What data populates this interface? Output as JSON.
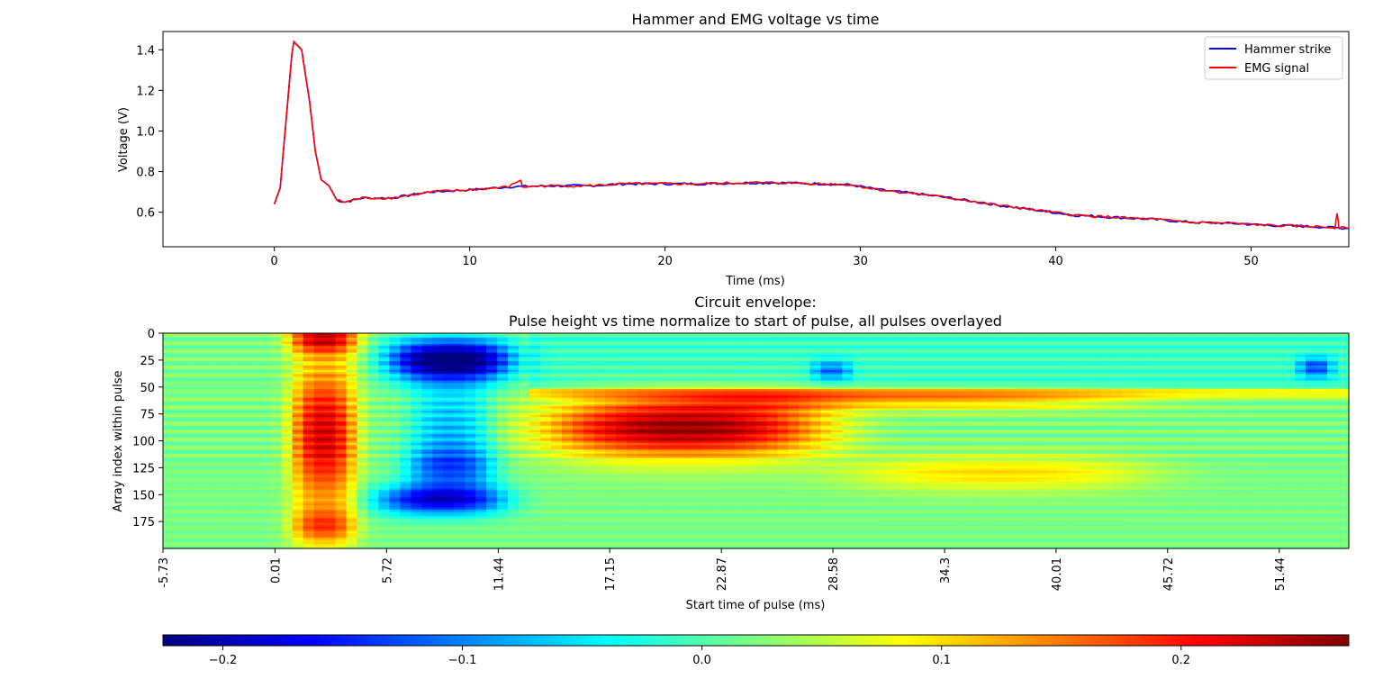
{
  "chart_data": [
    {
      "type": "line",
      "title": "Hammer and EMG voltage vs time",
      "xlabel": "Time (ms)",
      "ylabel": "Voltage (V)",
      "xlim": [
        -5.7,
        55
      ],
      "ylim": [
        0.43,
        1.49
      ],
      "xticks": [
        0,
        10,
        20,
        30,
        40,
        50
      ],
      "yticks": [
        0.6,
        0.8,
        1.0,
        1.2,
        1.4
      ],
      "ytick_labels": [
        "0.6",
        "0.8",
        "1.0",
        "1.2",
        "1.4"
      ],
      "legend_position": "top-right",
      "series": [
        {
          "name": "Hammer strike",
          "color": "#0000ff",
          "points": [
            [
              0,
              0.64
            ],
            [
              0.3,
              0.72
            ],
            [
              0.6,
              1.05
            ],
            [
              0.9,
              1.38
            ],
            [
              1.0,
              1.44
            ],
            [
              1.4,
              1.4
            ],
            [
              1.8,
              1.15
            ],
            [
              2.1,
              0.9
            ],
            [
              2.4,
              0.76
            ],
            [
              2.8,
              0.73
            ],
            [
              3.2,
              0.66
            ],
            [
              3.6,
              0.65
            ],
            [
              4.5,
              0.67
            ],
            [
              6,
              0.67
            ],
            [
              8,
              0.7
            ],
            [
              10,
              0.71
            ],
            [
              12,
              0.725
            ],
            [
              14,
              0.73
            ],
            [
              16,
              0.73
            ],
            [
              18,
              0.74
            ],
            [
              20,
              0.74
            ],
            [
              22,
              0.74
            ],
            [
              24,
              0.745
            ],
            [
              26,
              0.745
            ],
            [
              28,
              0.74
            ],
            [
              29.5,
              0.735
            ],
            [
              31,
              0.71
            ],
            [
              33,
              0.69
            ],
            [
              35,
              0.665
            ],
            [
              37,
              0.635
            ],
            [
              39,
              0.61
            ],
            [
              41,
              0.585
            ],
            [
              43,
              0.575
            ],
            [
              45,
              0.565
            ],
            [
              47,
              0.55
            ],
            [
              49,
              0.545
            ],
            [
              51,
              0.535
            ],
            [
              53,
              0.53
            ],
            [
              55,
              0.52
            ]
          ]
        },
        {
          "name": "EMG signal",
          "color": "#ff0000",
          "points": [
            [
              0,
              0.64
            ],
            [
              0.3,
              0.72
            ],
            [
              0.6,
              1.05
            ],
            [
              0.9,
              1.38
            ],
            [
              1.0,
              1.44
            ],
            [
              1.4,
              1.4
            ],
            [
              1.8,
              1.15
            ],
            [
              2.1,
              0.9
            ],
            [
              2.4,
              0.76
            ],
            [
              2.8,
              0.73
            ],
            [
              3.2,
              0.66
            ],
            [
              3.6,
              0.65
            ],
            [
              4.5,
              0.67
            ],
            [
              6,
              0.67
            ],
            [
              8,
              0.7
            ],
            [
              10,
              0.71
            ],
            [
              12,
              0.725
            ],
            [
              12.6,
              0.76
            ],
            [
              12.7,
              0.725
            ],
            [
              14,
              0.73
            ],
            [
              16,
              0.73
            ],
            [
              18,
              0.74
            ],
            [
              20,
              0.74
            ],
            [
              22,
              0.74
            ],
            [
              24,
              0.745
            ],
            [
              26,
              0.745
            ],
            [
              28,
              0.74
            ],
            [
              29.5,
              0.735
            ],
            [
              31,
              0.71
            ],
            [
              33,
              0.69
            ],
            [
              35,
              0.665
            ],
            [
              37,
              0.635
            ],
            [
              39,
              0.61
            ],
            [
              41,
              0.585
            ],
            [
              43,
              0.575
            ],
            [
              45,
              0.565
            ],
            [
              47,
              0.55
            ],
            [
              49,
              0.545
            ],
            [
              51,
              0.535
            ],
            [
              53,
              0.53
            ],
            [
              54.3,
              0.525
            ],
            [
              54.4,
              0.6
            ],
            [
              54.5,
              0.525
            ],
            [
              55,
              0.52
            ]
          ]
        }
      ]
    },
    {
      "type": "heatmap",
      "title": "Circuit envelope:",
      "subtitle": "Pulse height vs time normalize to start of pulse, all pulses overlayed",
      "xlabel": "Start time of pulse (ms)",
      "ylabel": "Array index within pulse",
      "xlim": [
        -5.73,
        55
      ],
      "ylim": [
        0,
        200
      ],
      "xtick_labels": [
        "-5.73",
        "0.01",
        "5.72",
        "11.44",
        "17.15",
        "22.87",
        "28.58",
        "34.3",
        "40.01",
        "45.72",
        "51.44"
      ],
      "yticks": [
        0,
        25,
        50,
        75,
        100,
        125,
        150,
        175
      ],
      "colormap": "jet",
      "clim": [
        -0.225,
        0.27
      ],
      "colorbar_ticks": [
        -0.2,
        -0.1,
        0.0,
        0.1,
        0.2
      ],
      "colorbar_tick_labels": [
        "−0.2",
        "−0.1",
        "0.0",
        "0.1",
        "0.2"
      ],
      "blobs": [
        {
          "t": 2.5,
          "i": 5,
          "st": 1.4,
          "si": 10,
          "v": 0.18
        },
        {
          "t": 2.5,
          "i": 95,
          "st": 1.3,
          "si": 50,
          "v": 0.21
        },
        {
          "t": 2.5,
          "i": 180,
          "st": 1.3,
          "si": 12,
          "v": 0.12
        },
        {
          "t": 9.0,
          "i": 25,
          "st": 2.5,
          "si": 14,
          "v": -0.27
        },
        {
          "t": 9.0,
          "i": 85,
          "st": 1.6,
          "si": 30,
          "v": -0.09
        },
        {
          "t": 9.0,
          "i": 125,
          "st": 1.8,
          "si": 14,
          "v": -0.12
        },
        {
          "t": 8.5,
          "i": 155,
          "st": 2.6,
          "si": 10,
          "v": -0.2
        },
        {
          "t": 21.0,
          "i": 88,
          "st": 5.5,
          "si": 20,
          "v": 0.24
        },
        {
          "t": 32.0,
          "i": 62,
          "st": 9.0,
          "si": 7,
          "v": 0.1
        },
        {
          "t": 37.0,
          "i": 130,
          "st": 6.0,
          "si": 12,
          "v": 0.08
        },
        {
          "t": 28.5,
          "i": 35,
          "st": 0.8,
          "si": 7,
          "v": -0.1
        },
        {
          "t": 53.3,
          "i": 32,
          "st": 0.7,
          "si": 7,
          "v": -0.12
        }
      ]
    }
  ]
}
